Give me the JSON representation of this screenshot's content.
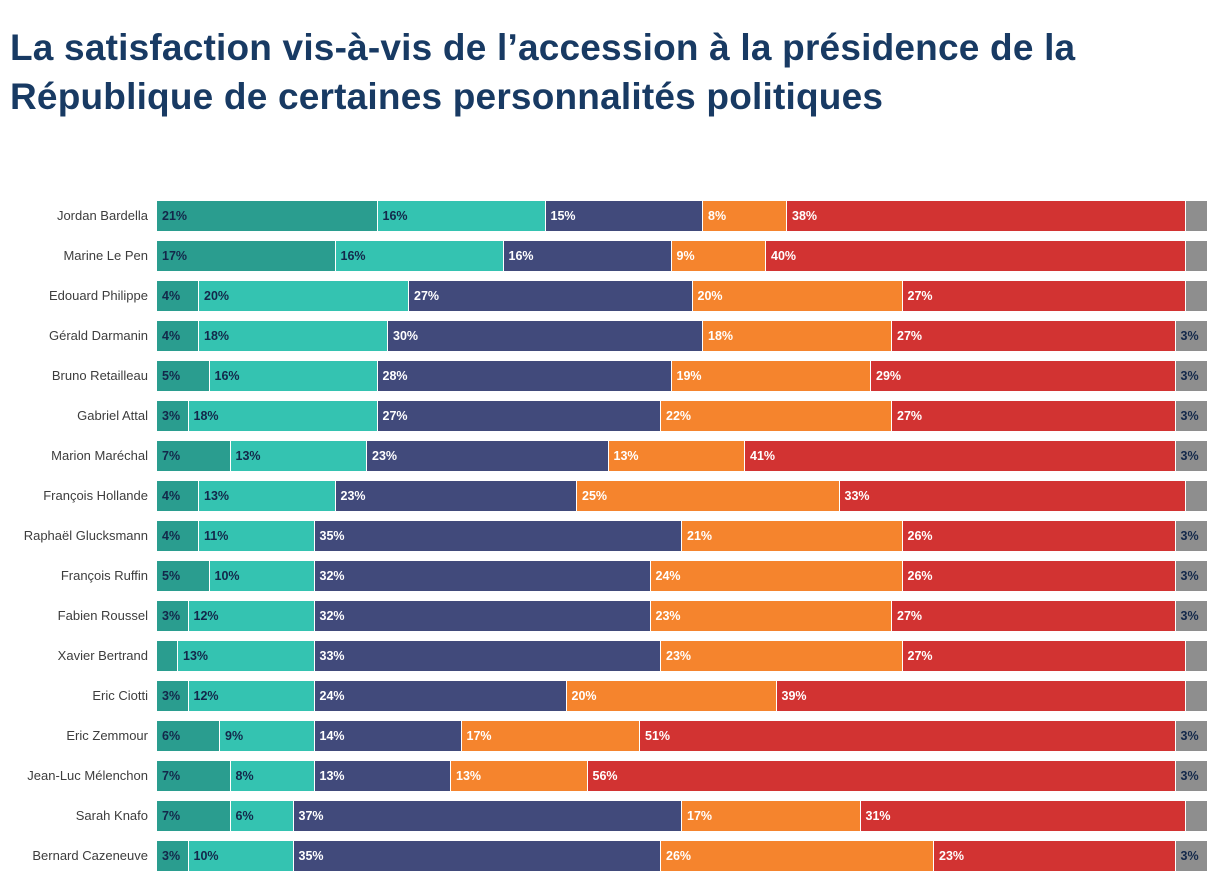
{
  "title": "La satisfaction vis-à-vis de l’accession à la présidence de la République de certaines personnalités politiques",
  "chart_data": {
    "type": "bar",
    "orientation": "horizontal",
    "stacked": true,
    "unit": "%",
    "xlim": [
      0,
      100
    ],
    "legend": "none",
    "grid": false,
    "series": [
      {
        "name": "dark-teal",
        "color": "#2a9d8f",
        "label_color": "#13284a"
      },
      {
        "name": "teal",
        "color": "#34c3b1",
        "label_color": "#13284a"
      },
      {
        "name": "navy",
        "color": "#414a7b",
        "label_color": "#ffffff"
      },
      {
        "name": "orange",
        "color": "#f5842d",
        "label_color": "#ffffff"
      },
      {
        "name": "red",
        "color": "#d23332",
        "label_color": "#ffffff"
      },
      {
        "name": "gray",
        "color": "#8e8e8e",
        "label_color": "#13284a"
      }
    ],
    "rows": [
      {
        "label": "Jordan Bardella",
        "values": [
          21,
          16,
          15,
          8,
          38,
          2
        ],
        "value_labels": [
          "21%",
          "16%",
          "15%",
          "8%",
          "38%",
          ""
        ]
      },
      {
        "label": "Marine Le Pen",
        "values": [
          17,
          16,
          16,
          9,
          40,
          2
        ],
        "value_labels": [
          "17%",
          "16%",
          "16%",
          "9%",
          "40%",
          ""
        ]
      },
      {
        "label": "Edouard Philippe",
        "values": [
          4,
          20,
          27,
          20,
          27,
          2
        ],
        "value_labels": [
          "4%",
          "20%",
          "27%",
          "20%",
          "27%",
          ""
        ]
      },
      {
        "label": "Gérald Darmanin",
        "values": [
          4,
          18,
          30,
          18,
          27,
          3
        ],
        "value_labels": [
          "4%",
          "18%",
          "30%",
          "18%",
          "27%",
          "3%"
        ]
      },
      {
        "label": "Bruno Retailleau",
        "values": [
          5,
          16,
          28,
          19,
          29,
          3
        ],
        "value_labels": [
          "5%",
          "16%",
          "28%",
          "19%",
          "29%",
          "3%"
        ]
      },
      {
        "label": "Gabriel Attal",
        "values": [
          3,
          18,
          27,
          22,
          27,
          3
        ],
        "value_labels": [
          "3%",
          "18%",
          "27%",
          "22%",
          "27%",
          "3%"
        ]
      },
      {
        "label": "Marion Maréchal",
        "values": [
          7,
          13,
          23,
          13,
          41,
          3
        ],
        "value_labels": [
          "7%",
          "13%",
          "23%",
          "13%",
          "41%",
          "3%"
        ]
      },
      {
        "label": "François Hollande",
        "values": [
          4,
          13,
          23,
          25,
          33,
          2
        ],
        "value_labels": [
          "4%",
          "13%",
          "23%",
          "25%",
          "33%",
          ""
        ]
      },
      {
        "label": "Raphaël Glucksmann",
        "values": [
          4,
          11,
          35,
          21,
          26,
          3
        ],
        "value_labels": [
          "4%",
          "11%",
          "35%",
          "21%",
          "26%",
          "3%"
        ]
      },
      {
        "label": "François Ruffin",
        "values": [
          5,
          10,
          32,
          24,
          26,
          3
        ],
        "value_labels": [
          "5%",
          "10%",
          "32%",
          "24%",
          "26%",
          "3%"
        ]
      },
      {
        "label": "Fabien Roussel",
        "values": [
          3,
          12,
          32,
          23,
          27,
          3
        ],
        "value_labels": [
          "3%",
          "12%",
          "32%",
          "23%",
          "27%",
          "3%"
        ]
      },
      {
        "label": "Xavier Bertrand",
        "values": [
          2,
          13,
          33,
          23,
          27,
          2
        ],
        "value_labels": [
          "",
          "13%",
          "33%",
          "23%",
          "27%",
          ""
        ]
      },
      {
        "label": "Eric Ciotti",
        "values": [
          3,
          12,
          24,
          20,
          39,
          2
        ],
        "value_labels": [
          "3%",
          "12%",
          "24%",
          "20%",
          "39%",
          ""
        ]
      },
      {
        "label": "Eric Zemmour",
        "values": [
          6,
          9,
          14,
          17,
          51,
          3
        ],
        "value_labels": [
          "6%",
          "9%",
          "14%",
          "17%",
          "51%",
          "3%"
        ]
      },
      {
        "label": "Jean-Luc Mélenchon",
        "values": [
          7,
          8,
          13,
          13,
          56,
          3
        ],
        "value_labels": [
          "7%",
          "8%",
          "13%",
          "13%",
          "56%",
          "3%"
        ]
      },
      {
        "label": "Sarah Knafo",
        "values": [
          7,
          6,
          37,
          17,
          31,
          2
        ],
        "value_labels": [
          "7%",
          "6%",
          "37%",
          "17%",
          "31%",
          ""
        ]
      },
      {
        "label": "Bernard Cazeneuve",
        "values": [
          3,
          10,
          35,
          26,
          23,
          3
        ],
        "value_labels": [
          "3%",
          "10%",
          "35%",
          "26%",
          "23%",
          "3%"
        ]
      }
    ]
  }
}
